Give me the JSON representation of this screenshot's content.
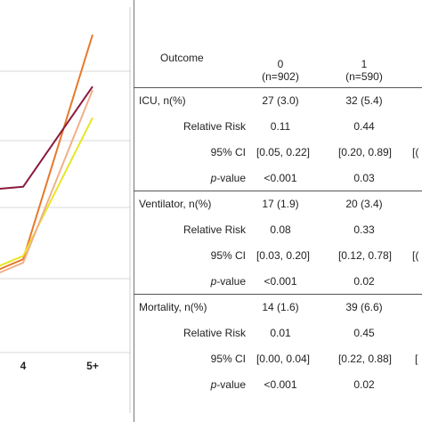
{
  "chart_data": {
    "type": "line",
    "x_ticks": [
      "4",
      "5+"
    ],
    "ylim": [
      0,
      100
    ],
    "grid": true,
    "series": [
      {
        "color": "#e8782a",
        "values": [
          22,
          27,
          92
        ]
      },
      {
        "color": "#8b1a3c",
        "values": [
          47,
          48,
          77
        ]
      },
      {
        "color": "#e8e624",
        "values": [
          23,
          28,
          68
        ]
      },
      {
        "color": "#f0b08a",
        "values": [
          21,
          26,
          76
        ]
      }
    ]
  },
  "table": {
    "header": {
      "outcome": "Outcome",
      "cols": [
        {
          "label": "0",
          "n": "(n=902)"
        },
        {
          "label": "1",
          "n": "(n=590)"
        }
      ]
    },
    "sections": [
      {
        "title": "ICU, n(%)",
        "counts": [
          "27 (3.0)",
          "32 (5.4)"
        ],
        "rr_label": "Relative Risk",
        "rr": [
          "0.11",
          "0.44"
        ],
        "ci_label": "95% CI",
        "ci": [
          "[0.05, 0.22]",
          "[0.20, 0.89]"
        ],
        "p_label_italic": "p",
        "p_label_rest": "-value",
        "p": [
          "<0.001",
          "0.03"
        ],
        "right_edge_glyph": "[("
      },
      {
        "title": "Ventilator, n(%)",
        "counts": [
          "17 (1.9)",
          "20 (3.4)"
        ],
        "rr_label": "Relative Risk",
        "rr": [
          "0.08",
          "0.33"
        ],
        "ci_label": "95% CI",
        "ci": [
          "[0.03, 0.20]",
          "[0.12, 0.78]"
        ],
        "p_label_italic": "p",
        "p_label_rest": "-value",
        "p": [
          "<0.001",
          "0.02"
        ],
        "right_edge_glyph": "[("
      },
      {
        "title": "Mortality, n(%)",
        "counts": [
          "14 (1.6)",
          "39 (6.6)"
        ],
        "rr_label": "Relative Risk",
        "rr": [
          "0.01",
          "0.45"
        ],
        "ci_label": "95% CI",
        "ci": [
          "[0.00, 0.04]",
          "[0.22, 0.88]"
        ],
        "p_label_italic": "p",
        "p_label_rest": "-value",
        "p": [
          "<0.001",
          "0.02"
        ],
        "right_edge_glyph": "["
      }
    ]
  }
}
